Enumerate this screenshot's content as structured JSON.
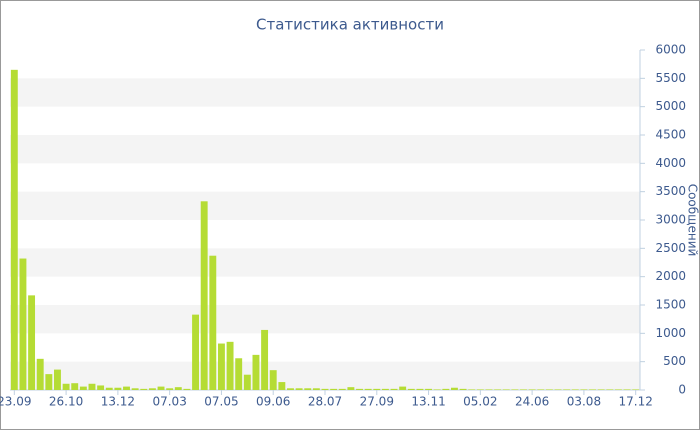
{
  "chart_data": {
    "type": "bar",
    "title": "Статистика активности",
    "y_label": "Сообщений",
    "categories": [
      "23.09",
      null,
      null,
      null,
      null,
      null,
      "26.10",
      null,
      null,
      null,
      null,
      null,
      "13.12",
      null,
      null,
      null,
      null,
      null,
      "07.03",
      null,
      null,
      null,
      null,
      null,
      "07.05",
      null,
      null,
      null,
      null,
      null,
      "09.06",
      null,
      null,
      null,
      null,
      null,
      "28.07",
      null,
      null,
      null,
      null,
      null,
      "27.09",
      null,
      null,
      null,
      null,
      null,
      "13.11",
      null,
      null,
      null,
      null,
      null,
      "05.02",
      null,
      null,
      null,
      null,
      null,
      "24.06",
      null,
      null,
      null,
      null,
      null,
      "03.08",
      null,
      null,
      null,
      null,
      null,
      "17.12"
    ],
    "values": [
      5650,
      2320,
      1670,
      550,
      280,
      360,
      110,
      120,
      60,
      110,
      80,
      40,
      40,
      60,
      30,
      20,
      30,
      60,
      30,
      50,
      20,
      1330,
      3330,
      2370,
      820,
      850,
      560,
      270,
      620,
      1060,
      350,
      140,
      30,
      30,
      30,
      30,
      20,
      20,
      20,
      50,
      20,
      20,
      20,
      20,
      20,
      60,
      20,
      20,
      20,
      10,
      20,
      40,
      20,
      10,
      10,
      10,
      10,
      10,
      10,
      10,
      10,
      10,
      10,
      10,
      10,
      10,
      10,
      10,
      10,
      10,
      10,
      10,
      10
    ],
    "color": "#b5dc34",
    "ylim": [
      0,
      6000
    ],
    "yticks": [
      0,
      500,
      1000,
      1500,
      2000,
      2500,
      3000,
      3500,
      4000,
      4500,
      5000,
      5500,
      6000
    ],
    "y_axis_side": "right",
    "grid": true
  }
}
